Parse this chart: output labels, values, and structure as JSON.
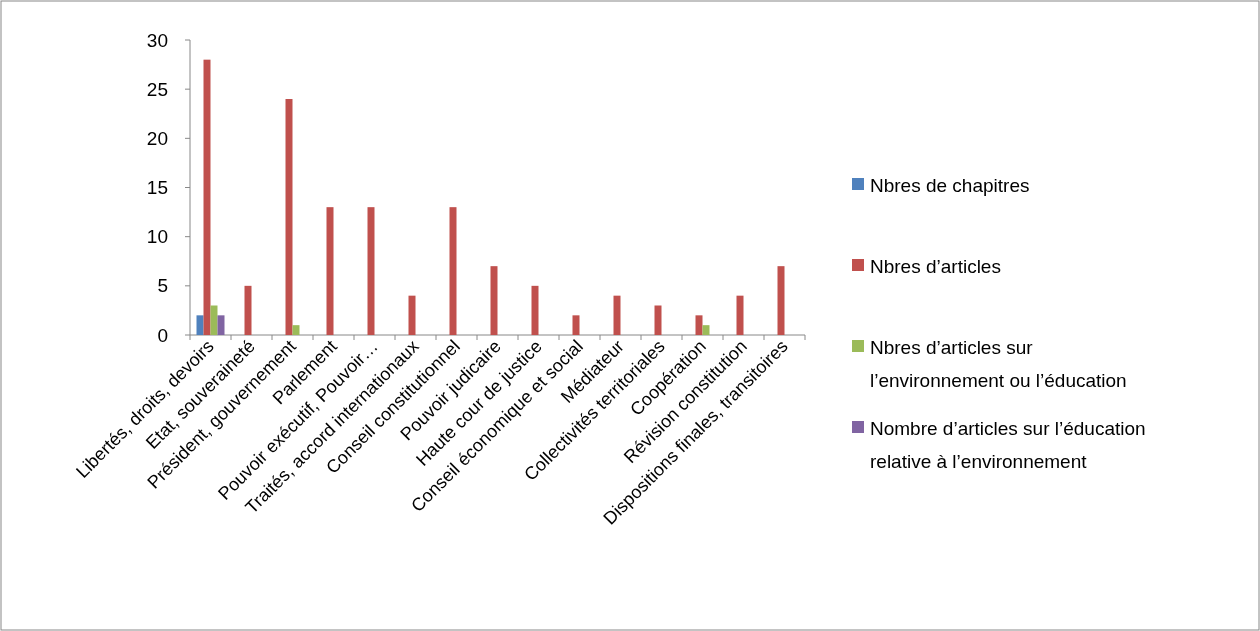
{
  "chart_data": {
    "type": "bar",
    "categories": [
      "Libertés, droits, devoirs",
      "Etat, souveraineté",
      "Président, gouvernement",
      "Parlement",
      "Pouvoir exécutif, Pouvoir…",
      "Traités, accord internationaux",
      "Conseil constitutionnel",
      "Pouvoir judicaire",
      "Haute cour de justice",
      "Conseil économique et social",
      "Médiateur",
      "Collectivités territoriales",
      "Coopération",
      "Révision constitution",
      "Dispositions finales, transitoires"
    ],
    "series": [
      {
        "name": "Nbres de chapitres",
        "color": "#4f81bd",
        "values": [
          2,
          0,
          0,
          0,
          0,
          0,
          0,
          0,
          0,
          0,
          0,
          0,
          0,
          0,
          0
        ]
      },
      {
        "name": "Nbres d’articles",
        "color": "#c0504d",
        "values": [
          28,
          5,
          24,
          13,
          13,
          4,
          13,
          7,
          5,
          2,
          4,
          3,
          2,
          4,
          7
        ]
      },
      {
        "name": "Nbres d’articles sur l’environnement ou l’éducation",
        "color": "#9bbb59",
        "values": [
          3,
          0,
          1,
          0,
          0,
          0,
          0,
          0,
          0,
          0,
          0,
          0,
          1,
          0,
          0
        ]
      },
      {
        "name": "Nombre d’articles sur l’éducation relative à l’environnement",
        "color": "#8064a2",
        "values": [
          2,
          0,
          0,
          0,
          0,
          0,
          0,
          0,
          0,
          0,
          0,
          0,
          0,
          0,
          0
        ]
      }
    ],
    "ylim": [
      0,
      30
    ],
    "yticks": [
      0,
      5,
      10,
      15,
      20,
      25,
      30
    ],
    "grid": false,
    "legend": "right"
  }
}
